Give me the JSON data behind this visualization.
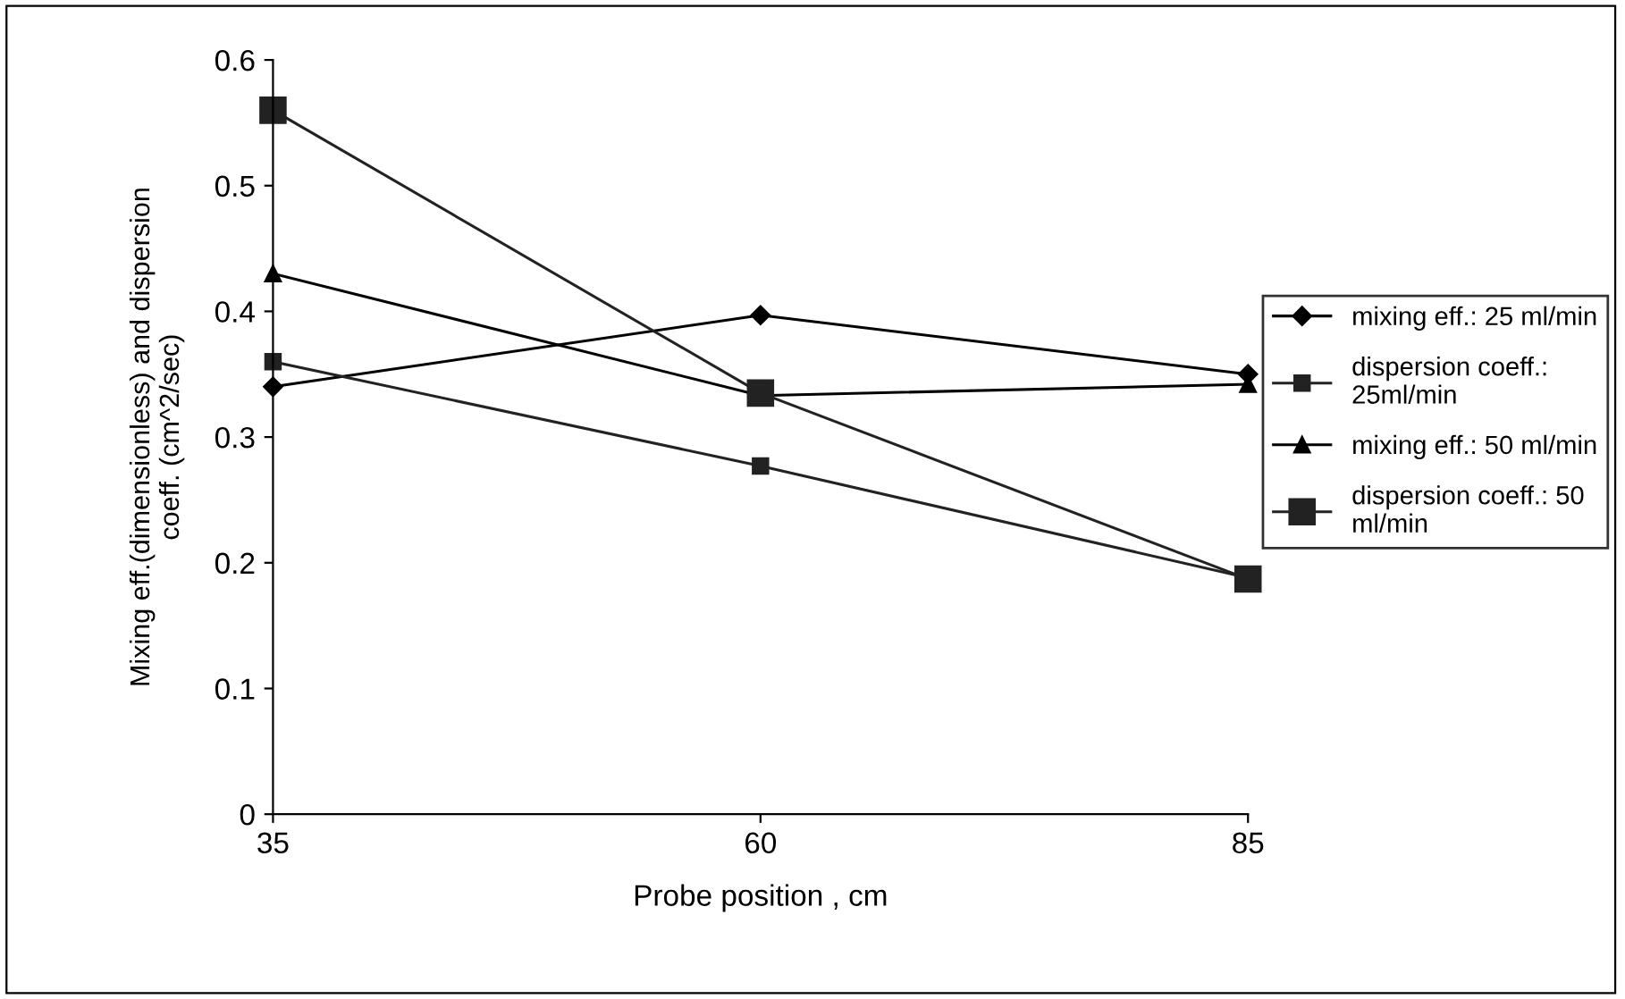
{
  "chart_data": {
    "type": "line",
    "xlabel": "Probe position , cm",
    "ylabel": "Mixing eff.(dimensionless) and dispersion\ncoeff. (cm^2/sec)",
    "x": [
      35,
      60,
      85
    ],
    "xlim": [
      35,
      85
    ],
    "xticks": [
      35,
      60,
      85
    ],
    "ylim": [
      0,
      0.6
    ],
    "yticks": [
      0,
      0.1,
      0.2,
      0.3,
      0.4,
      0.5,
      0.6
    ],
    "grid": false,
    "legend": "right",
    "line_style": "solid",
    "series": [
      {
        "name": "mixing eff.: 25 ml/min",
        "color": "#000000",
        "marker": "diamond",
        "values": [
          0.34,
          0.397,
          0.35
        ]
      },
      {
        "name": "dispersion coeff.:\n25ml/min",
        "color": "#222222",
        "marker": "square",
        "values": [
          0.36,
          0.277,
          0.188
        ]
      },
      {
        "name": "mixing eff.: 50 ml/min",
        "color": "#000000",
        "marker": "triangle",
        "values": [
          0.43,
          0.333,
          0.342
        ]
      },
      {
        "name": "dispersion coeff.: 50\nml/min",
        "color": "#222222",
        "marker": "square",
        "values": [
          0.56,
          0.335,
          0.187
        ]
      }
    ]
  }
}
